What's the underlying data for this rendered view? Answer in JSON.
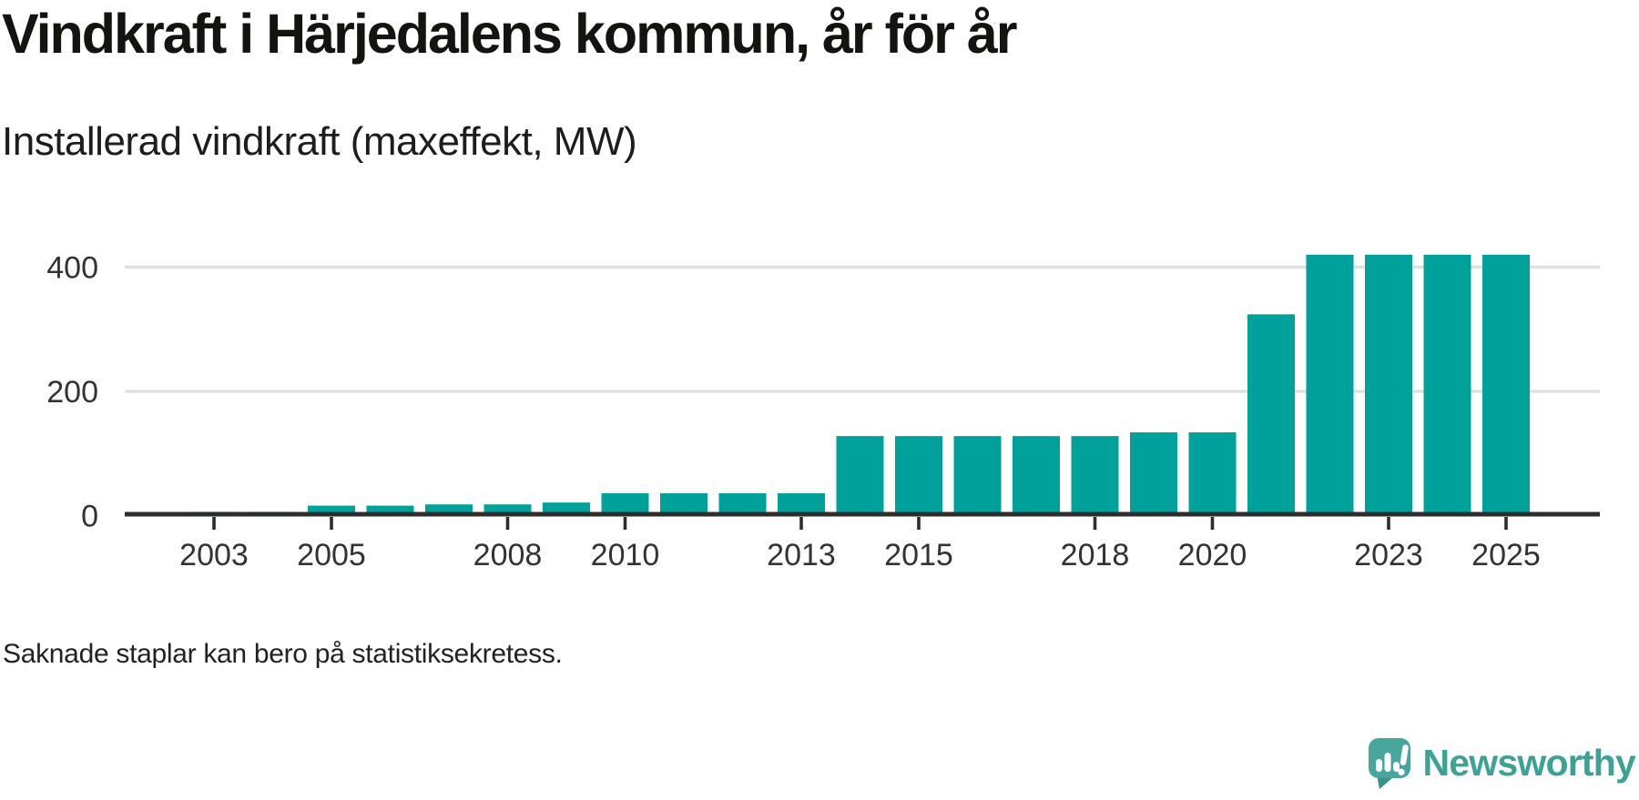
{
  "page": {
    "background": "#ffffff"
  },
  "header": {
    "title": "Vindkraft i Härjedalens kommun, år för år",
    "subtitle": "Installerad vindkraft (maxeffekt, MW)"
  },
  "footer": {
    "note": "Saknade staplar kan bero på statistiksekretess."
  },
  "branding": {
    "name": "Newsworthy",
    "icon": "newsworthy-speech-bubble-chart-icon",
    "text_color": "#3ba294",
    "icon_color": "#47a79c",
    "icon_tail_color": "#35948a",
    "icon_glyph_color": "#ffffff"
  },
  "chart_data": {
    "type": "bar",
    "title": "Vindkraft i Härjedalens kommun, år för år",
    "subtitle": "Installerad vindkraft (maxeffekt, MW)",
    "xlabel": "",
    "ylabel": "Installerad vindkraft (maxeffekt, MW)",
    "unit": "MW",
    "categories": [
      2003,
      2004,
      2005,
      2006,
      2007,
      2008,
      2009,
      2010,
      2011,
      2012,
      2013,
      2014,
      2015,
      2016,
      2017,
      2018,
      2019,
      2020,
      2021,
      2022,
      2023,
      2024,
      2025
    ],
    "values": [
      6,
      6,
      16,
      16,
      18,
      18,
      21,
      36,
      36,
      36,
      36,
      128,
      128,
      128,
      128,
      128,
      134,
      134,
      324,
      420,
      420,
      420,
      420
    ],
    "x_tick_labels": [
      "2003",
      "2005",
      "2008",
      "2010",
      "2013",
      "2015",
      "2018",
      "2020",
      "2023",
      "2025"
    ],
    "y_ticks": [
      0,
      200,
      400
    ],
    "ylim": [
      0,
      440
    ],
    "xlim": [
      2002,
      2026.5
    ],
    "grid": "horizontal",
    "legend": "none",
    "bar_color": "#00a19a",
    "axis_color": "#2d2d2d",
    "gridline_color": "#e0e0e0",
    "tick_label_color": "#333333",
    "note": "Saknade staplar kan bero på statistiksekretess."
  }
}
